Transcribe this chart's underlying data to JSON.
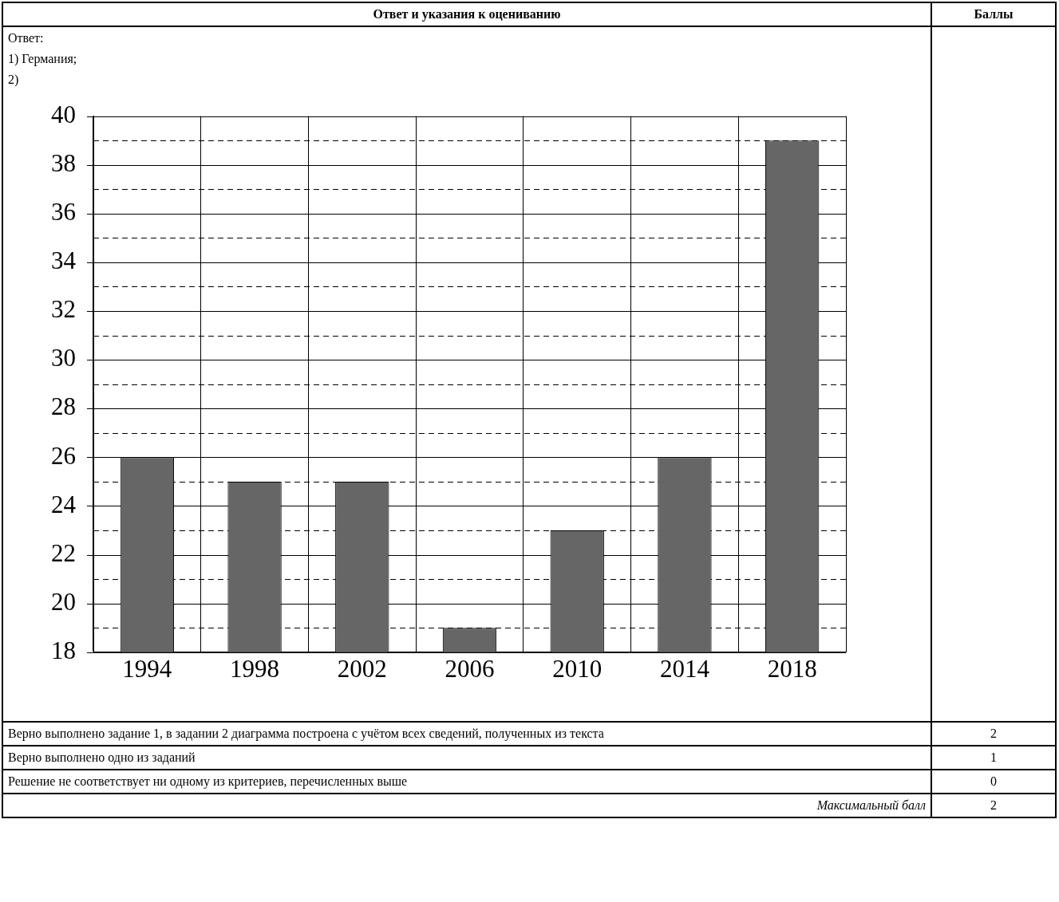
{
  "chart_data": {
    "type": "bar",
    "categories": [
      "1994",
      "1998",
      "2002",
      "2006",
      "2010",
      "2014",
      "2018"
    ],
    "values": [
      26,
      25,
      25,
      19,
      23,
      26,
      39
    ],
    "color": "#666666",
    "ylim": [
      18,
      40
    ],
    "yticks": [
      18,
      {
        "value": 19,
        "label": null
      },
      20,
      {
        "value": 21,
        "label": null
      },
      22,
      {
        "value": 23,
        "label": null
      },
      24,
      {
        "value": 25,
        "label": null
      },
      26,
      {
        "value": 27,
        "label": null
      },
      28,
      {
        "value": 29,
        "label": null
      },
      30,
      {
        "value": 31,
        "label": null
      },
      32,
      {
        "value": 33,
        "label": null
      },
      34,
      {
        "value": 35,
        "label": null
      },
      36,
      {
        "value": 37,
        "label": null
      },
      38,
      {
        "value": 39,
        "label": null
      },
      40
    ],
    "grid": true,
    "annotations": [
      "Ответ и указания к оцениванию",
      "Баллы",
      "Ответ:",
      "1) Германия;",
      "2)",
      "Верно выполнено задание 1, в задании 2 диаграмма построена с учётом всех сведений, полученных из текста",
      "2",
      "Верно выполнено одно из заданий",
      "1",
      "Решение не соответствует ни одному из критериев, перечисленных выше",
      "0",
      "Максимальный балл",
      "2"
    ]
  }
}
